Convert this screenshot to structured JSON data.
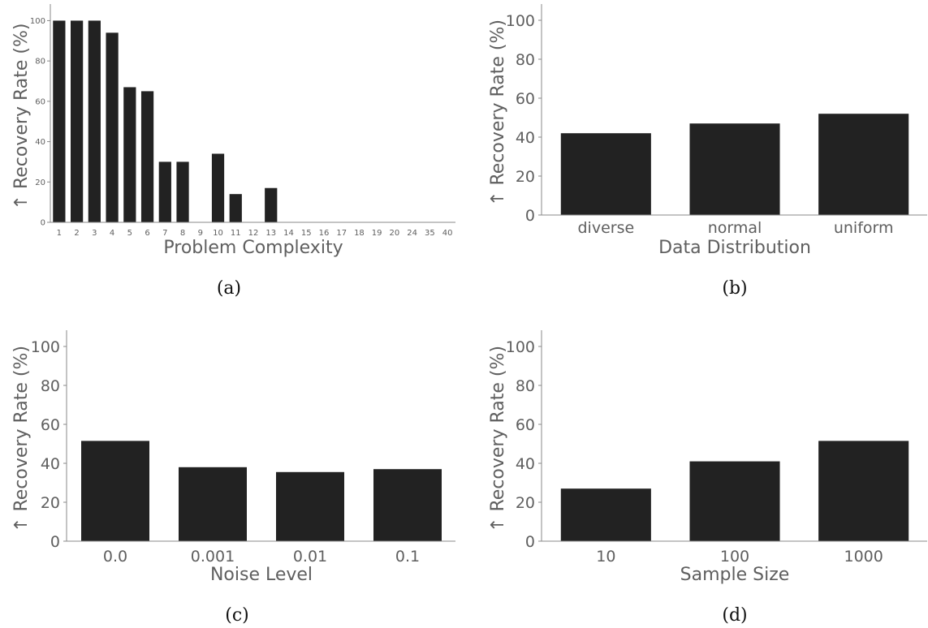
{
  "chart_data": [
    {
      "type": "bar",
      "panel_label": "(a)",
      "xlabel": "Problem Complexity",
      "ylabel": "↑ Recovery Rate (%)",
      "categories": [
        "1",
        "2",
        "3",
        "4",
        "5",
        "6",
        "7",
        "8",
        "9",
        "10",
        "11",
        "12",
        "13",
        "14",
        "15",
        "16",
        "17",
        "18",
        "19",
        "20",
        "24",
        "35",
        "40"
      ],
      "values": [
        100,
        100,
        100,
        94,
        67,
        65,
        30,
        30,
        0,
        34,
        14,
        0,
        17,
        0,
        0,
        0,
        0,
        0,
        0,
        0,
        0,
        0,
        0
      ],
      "ylim": [
        0,
        105
      ],
      "yticks": [
        0,
        20,
        40,
        60,
        80,
        100
      ],
      "bar_color": "#222222",
      "grid": false
    },
    {
      "type": "bar",
      "panel_label": "(b)",
      "xlabel": "Data Distribution",
      "ylabel": "↑ Recovery Rate (%)",
      "categories": [
        "diverse",
        "normal",
        "uniform"
      ],
      "values": [
        42,
        47,
        52
      ],
      "ylim": [
        0,
        105
      ],
      "yticks": [
        0,
        20,
        40,
        60,
        80,
        100
      ],
      "bar_color": "#222222",
      "grid": false
    },
    {
      "type": "bar",
      "panel_label": "(c)",
      "xlabel": "Noise Level",
      "ylabel": "↑ Recovery Rate (%)",
      "categories": [
        "0.0",
        "0.001",
        "0.01",
        "0.1"
      ],
      "values": [
        51.5,
        38,
        35.5,
        37
      ],
      "ylim": [
        0,
        105
      ],
      "yticks": [
        0,
        20,
        40,
        60,
        80,
        100
      ],
      "bar_color": "#222222",
      "grid": false
    },
    {
      "type": "bar",
      "panel_label": "(d)",
      "xlabel": "Sample Size",
      "ylabel": "↑ Recovery Rate (%)",
      "categories": [
        "10",
        "100",
        "1000"
      ],
      "values": [
        27,
        41,
        51.5
      ],
      "ylim": [
        0,
        105
      ],
      "yticks": [
        0,
        20,
        40,
        60,
        80,
        100
      ],
      "bar_color": "#222222",
      "grid": false
    }
  ]
}
